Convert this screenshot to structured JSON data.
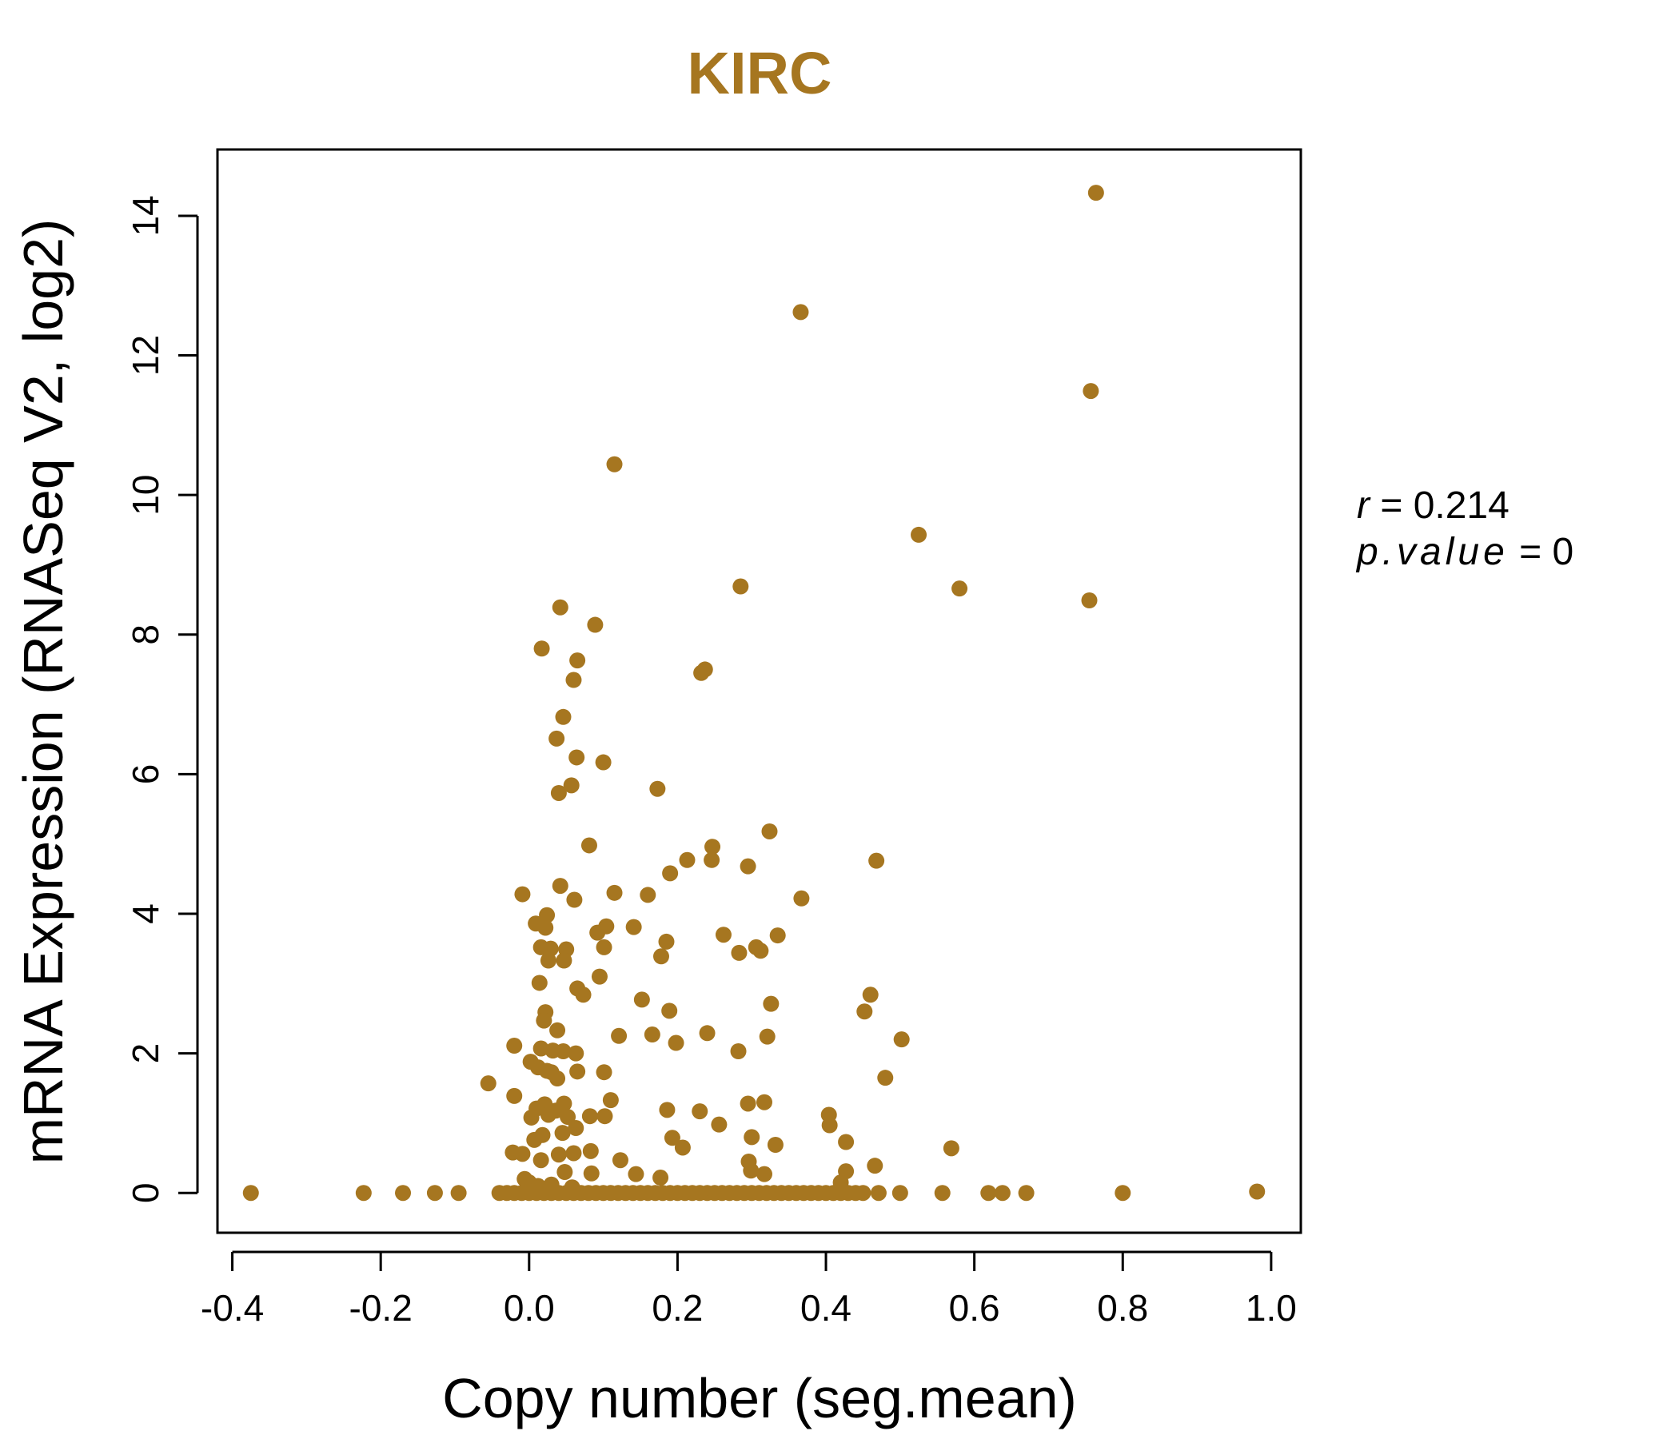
{
  "chart_data": {
    "type": "scatter",
    "title": "KIRC",
    "xlabel": "Copy number (seg.mean)",
    "ylabel": "mRNA Expression (RNASeq V2, log2)",
    "xlim": [
      -0.42,
      1.04
    ],
    "ylim": [
      -0.57,
      14.95
    ],
    "x_ticks": [
      -0.4,
      -0.2,
      0.0,
      0.2,
      0.4,
      0.6,
      0.8,
      1.0
    ],
    "x_tick_labels": [
      "-0.4",
      "-0.2",
      "0.0",
      "0.2",
      "0.4",
      "0.6",
      "0.8",
      "1.0"
    ],
    "y_ticks": [
      0,
      2,
      4,
      6,
      8,
      10,
      12,
      14
    ],
    "y_tick_labels": [
      "0",
      "2",
      "4",
      "6",
      "8",
      "10",
      "12",
      "14"
    ],
    "grid": false,
    "colors": {
      "point": "#A67620",
      "title": "#A67620",
      "axis": "#000000"
    },
    "annotation": {
      "r_label": "r",
      "r_value": "0.214",
      "p_label": "p.value",
      "p_value": "0"
    },
    "points": [
      [
        0.764,
        14.33
      ],
      [
        0.366,
        12.62
      ],
      [
        0.757,
        11.49
      ],
      [
        0.115,
        10.44
      ],
      [
        0.525,
        9.43
      ],
      [
        0.285,
        8.69
      ],
      [
        0.58,
        8.66
      ],
      [
        0.755,
        8.49
      ],
      [
        0.042,
        8.39
      ],
      [
        0.089,
        8.14
      ],
      [
        0.017,
        7.8
      ],
      [
        0.065,
        7.63
      ],
      [
        0.237,
        7.5
      ],
      [
        0.232,
        7.45
      ],
      [
        0.06,
        7.35
      ],
      [
        0.046,
        6.82
      ],
      [
        0.037,
        6.51
      ],
      [
        0.064,
        6.24
      ],
      [
        0.1,
        6.17
      ],
      [
        0.057,
        5.84
      ],
      [
        0.04,
        5.73
      ],
      [
        0.173,
        5.79
      ],
      [
        0.324,
        5.18
      ],
      [
        0.081,
        4.98
      ],
      [
        0.247,
        4.96
      ],
      [
        0.246,
        4.77
      ],
      [
        0.213,
        4.77
      ],
      [
        0.468,
        4.76
      ],
      [
        0.295,
        4.68
      ],
      [
        0.19,
        4.58
      ],
      [
        0.042,
        4.4
      ],
      [
        -0.009,
        4.28
      ],
      [
        0.115,
        4.3
      ],
      [
        0.16,
        4.27
      ],
      [
        0.061,
        4.2
      ],
      [
        0.367,
        4.22
      ],
      [
        0.024,
        3.98
      ],
      [
        0.009,
        3.86
      ],
      [
        0.022,
        3.8
      ],
      [
        0.104,
        3.82
      ],
      [
        0.141,
        3.81
      ],
      [
        0.092,
        3.73
      ],
      [
        0.262,
        3.7
      ],
      [
        0.335,
        3.69
      ],
      [
        0.185,
        3.6
      ],
      [
        0.016,
        3.52
      ],
      [
        0.029,
        3.5
      ],
      [
        0.05,
        3.49
      ],
      [
        0.101,
        3.52
      ],
      [
        0.306,
        3.52
      ],
      [
        0.312,
        3.47
      ],
      [
        0.283,
        3.44
      ],
      [
        0.178,
        3.39
      ],
      [
        0.026,
        3.33
      ],
      [
        0.047,
        3.33
      ],
      [
        0.095,
        3.1
      ],
      [
        0.014,
        3.01
      ],
      [
        0.065,
        2.93
      ],
      [
        0.073,
        2.84
      ],
      [
        0.152,
        2.77
      ],
      [
        0.46,
        2.84
      ],
      [
        0.326,
        2.71
      ],
      [
        0.189,
        2.61
      ],
      [
        0.452,
        2.6
      ],
      [
        0.022,
        2.59
      ],
      [
        0.02,
        2.47
      ],
      [
        0.038,
        2.33
      ],
      [
        0.166,
        2.27
      ],
      [
        0.121,
        2.25
      ],
      [
        0.24,
        2.29
      ],
      [
        0.321,
        2.24
      ],
      [
        0.502,
        2.2
      ],
      [
        0.198,
        2.15
      ],
      [
        -0.02,
        2.11
      ],
      [
        0.016,
        2.07
      ],
      [
        0.032,
        2.04
      ],
      [
        0.046,
        2.03
      ],
      [
        0.063,
        2.0
      ],
      [
        0.282,
        2.03
      ],
      [
        0.002,
        1.88
      ],
      [
        0.012,
        1.8
      ],
      [
        0.024,
        1.75
      ],
      [
        0.065,
        1.74
      ],
      [
        0.101,
        1.73
      ],
      [
        0.03,
        1.73
      ],
      [
        0.038,
        1.64
      ],
      [
        0.48,
        1.65
      ],
      [
        -0.055,
        1.57
      ],
      [
        -0.02,
        1.39
      ],
      [
        0.11,
        1.33
      ],
      [
        0.295,
        1.28
      ],
      [
        0.317,
        1.3
      ],
      [
        0.021,
        1.27
      ],
      [
        0.047,
        1.28
      ],
      [
        0.01,
        1.21
      ],
      [
        0.036,
        1.18
      ],
      [
        0.186,
        1.19
      ],
      [
        0.23,
        1.17
      ],
      [
        0.003,
        1.08
      ],
      [
        0.026,
        1.12
      ],
      [
        0.052,
        1.09
      ],
      [
        0.082,
        1.1
      ],
      [
        0.102,
        1.1
      ],
      [
        0.404,
        1.12
      ],
      [
        0.405,
        0.97
      ],
      [
        0.063,
        0.93
      ],
      [
        0.256,
        0.98
      ],
      [
        0.045,
        0.86
      ],
      [
        0.018,
        0.83
      ],
      [
        0.007,
        0.76
      ],
      [
        0.193,
        0.79
      ],
      [
        0.3,
        0.8
      ],
      [
        0.427,
        0.73
      ],
      [
        0.332,
        0.69
      ],
      [
        0.207,
        0.65
      ],
      [
        0.569,
        0.64
      ],
      [
        -0.022,
        0.58
      ],
      [
        -0.009,
        0.56
      ],
      [
        0.04,
        0.55
      ],
      [
        0.06,
        0.57
      ],
      [
        0.083,
        0.6
      ],
      [
        0.016,
        0.47
      ],
      [
        0.123,
        0.47
      ],
      [
        0.296,
        0.45
      ],
      [
        0.466,
        0.39
      ],
      [
        0.048,
        0.3
      ],
      [
        0.084,
        0.28
      ],
      [
        0.144,
        0.27
      ],
      [
        0.177,
        0.22
      ],
      [
        0.299,
        0.32
      ],
      [
        0.317,
        0.27
      ],
      [
        0.427,
        0.31
      ],
      [
        -0.006,
        0.2
      ],
      [
        0.0,
        0.15
      ],
      [
        0.012,
        0.1
      ],
      [
        0.03,
        0.12
      ],
      [
        0.058,
        0.08
      ],
      [
        0.42,
        0.15
      ],
      [
        0.981,
        0.02
      ],
      [
        -0.375,
        0.0
      ],
      [
        -0.223,
        0.0
      ],
      [
        -0.17,
        0.0
      ],
      [
        -0.127,
        0.0
      ],
      [
        -0.095,
        0.0
      ],
      [
        -0.04,
        0.0
      ],
      [
        -0.03,
        0.0
      ],
      [
        -0.02,
        0.0
      ],
      [
        -0.01,
        0.0
      ],
      [
        0.0,
        0.0
      ],
      [
        0.01,
        0.0
      ],
      [
        0.02,
        0.0
      ],
      [
        0.03,
        0.0
      ],
      [
        0.04,
        0.0
      ],
      [
        0.05,
        0.0
      ],
      [
        0.06,
        0.0
      ],
      [
        0.07,
        0.0
      ],
      [
        0.08,
        0.0
      ],
      [
        0.09,
        0.0
      ],
      [
        0.1,
        0.0
      ],
      [
        0.11,
        0.0
      ],
      [
        0.12,
        0.0
      ],
      [
        0.13,
        0.0
      ],
      [
        0.14,
        0.0
      ],
      [
        0.15,
        0.0
      ],
      [
        0.16,
        0.0
      ],
      [
        0.17,
        0.0
      ],
      [
        0.18,
        0.0
      ],
      [
        0.19,
        0.0
      ],
      [
        0.2,
        0.0
      ],
      [
        0.21,
        0.0
      ],
      [
        0.22,
        0.0
      ],
      [
        0.23,
        0.0
      ],
      [
        0.24,
        0.0
      ],
      [
        0.25,
        0.0
      ],
      [
        0.26,
        0.0
      ],
      [
        0.27,
        0.0
      ],
      [
        0.28,
        0.0
      ],
      [
        0.29,
        0.0
      ],
      [
        0.3,
        0.0
      ],
      [
        0.31,
        0.0
      ],
      [
        0.32,
        0.0
      ],
      [
        0.33,
        0.0
      ],
      [
        0.34,
        0.0
      ],
      [
        0.35,
        0.0
      ],
      [
        0.36,
        0.0
      ],
      [
        0.37,
        0.0
      ],
      [
        0.38,
        0.0
      ],
      [
        0.39,
        0.0
      ],
      [
        0.4,
        0.0
      ],
      [
        0.41,
        0.0
      ],
      [
        0.42,
        0.0
      ],
      [
        0.43,
        0.0
      ],
      [
        0.44,
        0.0
      ],
      [
        0.45,
        0.0
      ],
      [
        0.471,
        0.0
      ],
      [
        0.5,
        0.0
      ],
      [
        0.557,
        0.0
      ],
      [
        0.619,
        0.0
      ],
      [
        0.638,
        0.0
      ],
      [
        0.67,
        0.0
      ],
      [
        0.8,
        0.0
      ]
    ]
  }
}
